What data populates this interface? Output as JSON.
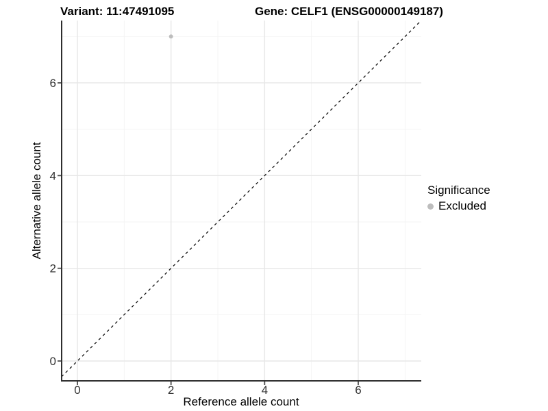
{
  "chart_data": {
    "type": "scatter",
    "title_left": "Variant: 11:47491095",
    "title_right": "Gene: CELF1 (ENSG00000149187)",
    "xlabel": "Reference allele count",
    "ylabel": "Alternative allele count",
    "xlim": [
      -0.34,
      7.35
    ],
    "ylim": [
      -0.43,
      7.35
    ],
    "x_ticks": [
      0,
      2,
      4,
      6
    ],
    "y_ticks": [
      0,
      2,
      4,
      6
    ],
    "grid": {
      "major": true,
      "minor": true
    },
    "series": [
      {
        "name": "Excluded",
        "color": "#bdbdbd",
        "points": [
          {
            "x": 2,
            "y": 7
          }
        ]
      }
    ],
    "reference_line": {
      "kind": "identity y=x",
      "style": "dashed",
      "color": "#111111"
    },
    "legend": {
      "title": "Significance",
      "position": "right",
      "items": [
        {
          "label": "Excluded",
          "color": "#bdbdbd"
        }
      ]
    }
  },
  "colors": {
    "background": "#ffffff",
    "grid_major": "#e7e7e7",
    "grid_minor": "#f3f3f3",
    "axis_line": "#2e2e2e",
    "tick_mark": "#4d4d4d",
    "tick_label": "#333333",
    "axis_title": "#000000",
    "title_text": "#000000"
  }
}
